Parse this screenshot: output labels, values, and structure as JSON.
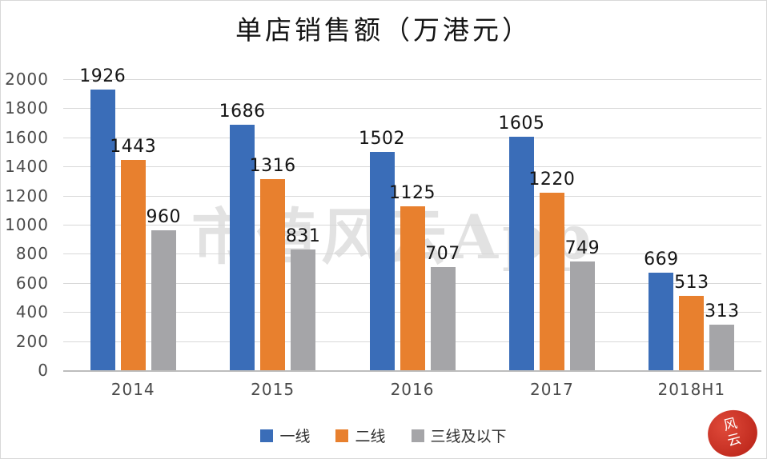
{
  "chart_data": {
    "type": "bar",
    "title": "单店销售额（万港元）",
    "categories": [
      "2014",
      "2015",
      "2016",
      "2017",
      "2018H1"
    ],
    "series": [
      {
        "id": "tier1",
        "name": "一线",
        "color": "#3A6DB8",
        "values": [
          1926,
          1686,
          1502,
          1605,
          669
        ]
      },
      {
        "id": "tier2",
        "name": "二线",
        "color": "#E8802E",
        "values": [
          1443,
          1316,
          1125,
          1220,
          513
        ]
      },
      {
        "id": "tier3-and-below",
        "name": "三线及以下",
        "color": "#A5A5A8",
        "values": [
          960,
          831,
          707,
          749,
          313
        ]
      }
    ],
    "xlabel": "",
    "ylabel": "",
    "ylim": [
      0,
      2000
    ],
    "yticks": [
      0,
      200,
      400,
      600,
      800,
      1000,
      1200,
      1400,
      1600,
      1800,
      2000
    ],
    "grid": true,
    "legend_position": "bottom"
  },
  "watermark": {
    "text": "市值风云App",
    "color": "rgba(110,110,110,0.20)"
  },
  "seal": {
    "text": "风\n云",
    "color": "#C02A1E"
  }
}
